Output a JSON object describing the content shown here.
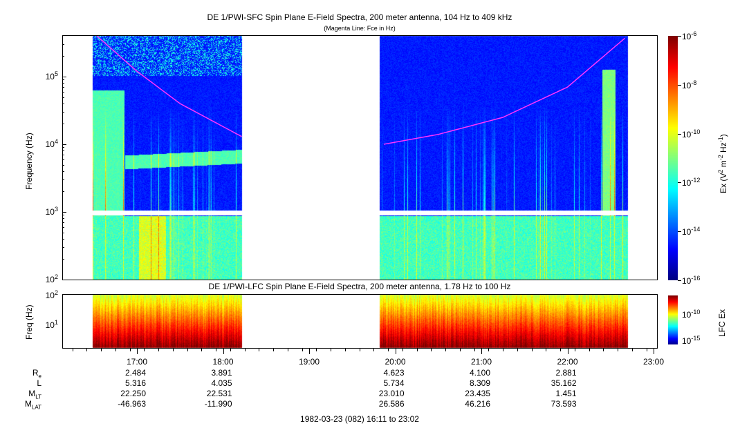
{
  "chart_data": [
    {
      "type": "heatmap",
      "title": "DE 1/PWI-SFC  Spin Plane E-Field Spectra, 200 meter antenna, 104 Hz to 409 kHz",
      "subtitle": "(Magenta Line: Fce in Hz)",
      "ylabel": "Frequency (Hz)",
      "yscale": "log",
      "ylim": [
        100,
        409000
      ],
      "yticks": [
        "10^2",
        "10^3",
        "10^4",
        "10^5"
      ],
      "data_intervals": [
        [
          "16:29",
          "18:13"
        ],
        [
          "19:49",
          "22:42"
        ]
      ],
      "colorbar": {
        "label": "Ex (V^2 m^-2 Hz^-1)",
        "scale": "log",
        "range": [
          1e-16,
          1e-06
        ],
        "ticks": [
          "10^-6",
          "10^-8",
          "10^-10",
          "10^-12",
          "10^-14",
          "10^-16"
        ],
        "colormap": "jet"
      },
      "fce_line": {
        "color": "#ff33ff",
        "segments": [
          {
            "times": [
              "16:32",
              "17:00",
              "17:30",
              "18:13"
            ],
            "freq_hz": [
              400000,
              120000,
              40000,
              13000
            ]
          },
          {
            "times": [
              "19:52",
              "20:30",
              "21:15",
              "22:00",
              "22:40"
            ],
            "freq_hz": [
              10000,
              14000,
              25000,
              70000,
              370000
            ]
          }
        ]
      }
    },
    {
      "type": "heatmap",
      "title": "DE 1/PWI-LFC  Spin Plane E-Field Spectra, 200 meter antenna, 1.78 Hz to 100 Hz",
      "ylabel": "Freq (Hz)",
      "yscale": "log",
      "ylim": [
        1.78,
        100
      ],
      "yticks": [
        "10^1",
        "10^2"
      ],
      "colorbar": {
        "label": "LFC Ex",
        "scale": "log",
        "ticks": [
          "10^-10",
          "10^-15"
        ],
        "colormap": "jet"
      }
    }
  ],
  "xaxis": {
    "ticks": [
      "17:00",
      "18:00",
      "19:00",
      "20:00",
      "21:00",
      "22:00",
      "23:00"
    ]
  },
  "ephemeris": {
    "labels": [
      {
        "main": "R",
        "sub": "e"
      },
      {
        "main": "L",
        "sub": ""
      },
      {
        "main": "M",
        "sub": "LT"
      },
      {
        "main": "M",
        "sub": "LAT"
      }
    ],
    "rows": [
      [
        "2.484",
        "3.891",
        "",
        "4.623",
        "4.100",
        "2.881"
      ],
      [
        "5.316",
        "4.035",
        "",
        "5.734",
        "8.309",
        "35.162"
      ],
      [
        "22.250",
        "22.531",
        "",
        "23.010",
        "23.435",
        "1.451"
      ],
      [
        "-46.963",
        "-11.990",
        "",
        "26.586",
        "46.216",
        "73.593"
      ]
    ]
  },
  "footer": "1982-03-23 (082) 16:11 to 23:02"
}
